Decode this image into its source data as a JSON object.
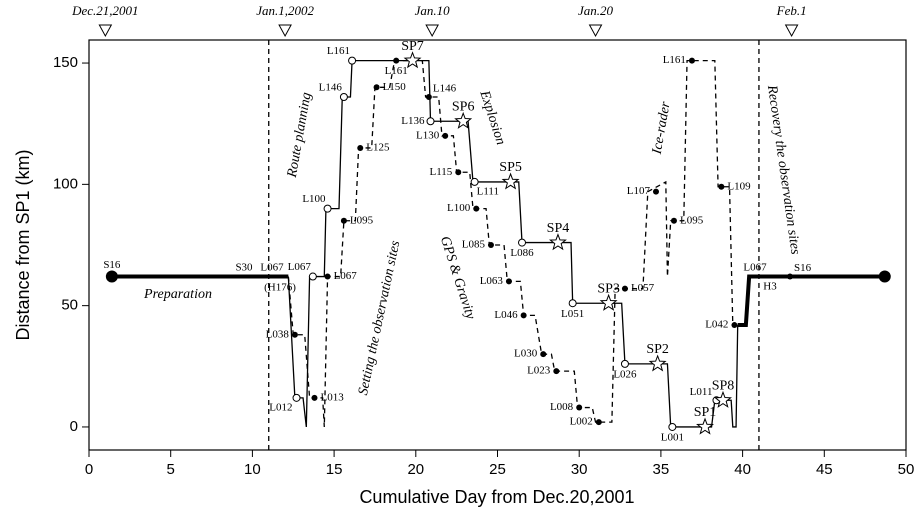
{
  "chart_data": {
    "type": "line",
    "xlabel": "Cumulative Day from Dec.20,2001",
    "ylabel": "Distance from SP1 (km)",
    "xlim": [
      0,
      50
    ],
    "ylim": [
      -9.5,
      159.5
    ],
    "xticks": [
      0,
      5,
      10,
      15,
      20,
      25,
      30,
      35,
      40,
      45,
      50
    ],
    "yticks": [
      0,
      50,
      100,
      150
    ],
    "top_ticks": [
      {
        "value": 1,
        "label": "Dec.21,2001"
      },
      {
        "value": 12,
        "label": "Jan.1,2002"
      },
      {
        "value": 21,
        "label": "Jan.10"
      },
      {
        "value": 31,
        "label": "Jan.20"
      },
      {
        "value": 43,
        "label": "Feb.1"
      }
    ],
    "vlines": [
      11,
      41
    ],
    "series": [
      {
        "color": "#000000",
        "line_style": "solid",
        "line_width": 4,
        "x": [
          1.4,
          12.2
        ],
        "values": [
          62,
          62
        ]
      },
      {
        "color": "#000000",
        "line_style": "solid",
        "line_width": 1.3,
        "x": [
          12.2,
          12.6,
          13.1,
          13.3,
          13.5,
          14.4,
          14.5,
          15.3,
          15.5,
          16.0,
          16.1,
          20.8,
          20.9,
          23.2,
          23.5,
          26.3,
          26.5,
          29.5,
          29.6,
          32.6,
          32.8,
          35.4,
          35.6,
          38.1,
          38.3,
          39.3,
          39.4,
          39.6,
          39.7
        ],
        "values": [
          62,
          12,
          12,
          0,
          62,
          62,
          90,
          90,
          136,
          136,
          151,
          151,
          126,
          126,
          101,
          101,
          76,
          76,
          51,
          51,
          26,
          26,
          0,
          0,
          11,
          11,
          0,
          0,
          42
        ]
      },
      {
        "color": "#000000",
        "line_style": "dashed",
        "line_width": 1.3,
        "x": [
          12.2,
          12.5,
          13.2,
          13.5,
          14.3,
          14.4,
          14.6,
          15.4,
          15.6,
          16.3,
          16.5,
          17.3,
          17.5,
          18.4,
          18.7,
          20.4,
          20.6,
          21.4,
          21.6,
          22.3,
          22.5,
          23.3,
          23.5,
          24.3,
          24.5,
          25.4,
          25.6,
          26.4,
          26.6,
          27.3,
          27.7,
          28.3,
          28.5,
          29.7,
          29.9,
          30.8,
          31.0,
          32.0,
          32.2,
          33.9,
          34.2,
          35.3,
          35.4,
          35.6,
          36.4,
          36.6,
          38.3,
          38.5,
          39.2,
          39.4
        ],
        "values": [
          62,
          38,
          38,
          12,
          12,
          0,
          62,
          62,
          85,
          85,
          115,
          115,
          140,
          140,
          151,
          151,
          136,
          136,
          120,
          120,
          105,
          105,
          90,
          90,
          75,
          75,
          60,
          60,
          46,
          46,
          30,
          30,
          23,
          23,
          8,
          8,
          2,
          2,
          57,
          57,
          97,
          101,
          62,
          85,
          85,
          151,
          151,
          99,
          99,
          42
        ]
      },
      {
        "color": "#000000",
        "line_style": "solid",
        "line_width": 4,
        "x": [
          39.7,
          40.2,
          40.4,
          48.7
        ],
        "values": [
          42,
          42,
          62,
          62
        ]
      }
    ],
    "points": [
      {
        "marker": "big",
        "label": "S16",
        "x": 1.4,
        "y": 62
      },
      {
        "marker": "big",
        "x": 48.7,
        "y": 62
      },
      {
        "marker": "open",
        "label": "L012",
        "x": 12.7,
        "y": 12
      },
      {
        "marker": "open",
        "label": "L067",
        "x": 13.7,
        "y": 62
      },
      {
        "marker": "open",
        "label": "L100",
        "x": 14.6,
        "y": 90
      },
      {
        "marker": "open",
        "label": "L146",
        "x": 15.6,
        "y": 136
      },
      {
        "marker": "open",
        "label": "L161",
        "x": 16.1,
        "y": 151
      },
      {
        "marker": "star",
        "label": "SP7",
        "x": 19.8,
        "y": 151
      },
      {
        "marker": "open",
        "label": "L136",
        "x": 20.9,
        "y": 126
      },
      {
        "marker": "star",
        "label": "SP6",
        "x": 22.9,
        "y": 126
      },
      {
        "marker": "open",
        "label": "L111",
        "x": 23.6,
        "y": 101
      },
      {
        "marker": "star",
        "label": "SP5",
        "x": 25.8,
        "y": 101
      },
      {
        "marker": "open",
        "label": "L086",
        "x": 26.5,
        "y": 76
      },
      {
        "marker": "star",
        "label": "SP4",
        "x": 28.7,
        "y": 76
      },
      {
        "marker": "open",
        "label": "L051",
        "x": 29.6,
        "y": 51
      },
      {
        "marker": "star",
        "label": "SP3",
        "x": 31.8,
        "y": 51
      },
      {
        "marker": "open",
        "label": "L026",
        "x": 32.8,
        "y": 26
      },
      {
        "marker": "star",
        "label": "SP2",
        "x": 34.8,
        "y": 26
      },
      {
        "marker": "open",
        "label": "L001",
        "x": 35.7,
        "y": 0
      },
      {
        "marker": "star",
        "label": "SP1",
        "x": 37.7,
        "y": 0
      },
      {
        "marker": "open",
        "label": "L011",
        "x": 38.4,
        "y": 11
      },
      {
        "marker": "star",
        "label": "SP8",
        "x": 38.8,
        "y": 11
      },
      {
        "marker": "filled",
        "label": "L038",
        "x": 12.6,
        "y": 38
      },
      {
        "marker": "filled",
        "label": "L013",
        "x": 13.8,
        "y": 12
      },
      {
        "marker": "filled",
        "label": "L067",
        "x": 14.6,
        "y": 62
      },
      {
        "marker": "filled",
        "label": "L095",
        "x": 15.6,
        "y": 85
      },
      {
        "marker": "filled",
        "label": "L125",
        "x": 16.6,
        "y": 115
      },
      {
        "marker": "filled",
        "label": "L150",
        "x": 17.6,
        "y": 140
      },
      {
        "marker": "filled",
        "label": "L161",
        "x": 18.8,
        "y": 151
      },
      {
        "marker": "filled",
        "label": "L146",
        "x": 20.8,
        "y": 136
      },
      {
        "marker": "filled",
        "label": "L130",
        "x": 21.8,
        "y": 120
      },
      {
        "marker": "filled",
        "label": "L115",
        "x": 22.6,
        "y": 105
      },
      {
        "marker": "filled",
        "label": "L100",
        "x": 23.7,
        "y": 90
      },
      {
        "marker": "filled",
        "label": "L085",
        "x": 24.6,
        "y": 75
      },
      {
        "marker": "filled",
        "label": "L063",
        "x": 25.7,
        "y": 60
      },
      {
        "marker": "filled",
        "label": "L046",
        "x": 26.6,
        "y": 46
      },
      {
        "marker": "filled",
        "label": "L030",
        "x": 27.8,
        "y": 30
      },
      {
        "marker": "filled",
        "label": "L023",
        "x": 28.6,
        "y": 23
      },
      {
        "marker": "filled",
        "label": "L008",
        "x": 30.0,
        "y": 8
      },
      {
        "marker": "filled",
        "label": "L002",
        "x": 31.2,
        "y": 2
      },
      {
        "marker": "filled",
        "label": "L057",
        "x": 32.8,
        "y": 57
      },
      {
        "marker": "filled",
        "label": "L107",
        "x": 34.7,
        "y": 97
      },
      {
        "marker": "filled",
        "label": "L095",
        "x": 35.8,
        "y": 85
      },
      {
        "marker": "filled",
        "label": "L161",
        "x": 36.9,
        "y": 151
      },
      {
        "marker": "filled",
        "label": "L109",
        "x": 38.7,
        "y": 99
      },
      {
        "marker": "filled",
        "label": "L042",
        "x": 39.5,
        "y": 42
      },
      {
        "marker": "filled",
        "label": "S16",
        "x": 42.9,
        "y": 62
      }
    ],
    "annotations": [
      "S30",
      "L067",
      "(H176)",
      "L067",
      "H3",
      "Preparation",
      "Route planning",
      "Setting the observation sites",
      "Explosion",
      "GPS & Gravity",
      "Ice-rader",
      "Recovery the observation sites"
    ]
  }
}
